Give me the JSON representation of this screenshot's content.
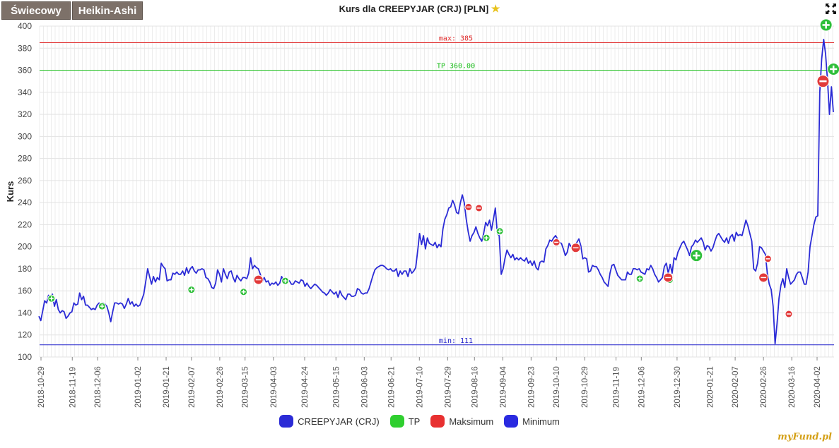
{
  "tabs": [
    {
      "label": "Świecowy"
    },
    {
      "label": "Heikin-Ashi"
    }
  ],
  "title": "Kurs dla CREEPYJAR (CRJ) [PLN]",
  "brand": "myFund.pl",
  "chart_data": {
    "type": "line",
    "ylabel": "Kurs",
    "ylim": [
      100,
      400
    ],
    "yticks": [
      100,
      120,
      140,
      160,
      180,
      200,
      220,
      240,
      260,
      280,
      300,
      320,
      340,
      360,
      380,
      400
    ],
    "grid": true,
    "legend_position": "bottom",
    "xticks": [
      "2018-10-29",
      "2018-11-19",
      "2018-12-06",
      "2019-01-02",
      "2019-01-21",
      "2019-02-07",
      "2019-02-26",
      "2019-03-15",
      "2019-04-03",
      "2019-04-24",
      "2019-05-15",
      "2019-06-03",
      "2019-06-21",
      "2019-07-10",
      "2019-07-29",
      "2019-08-16",
      "2019-09-04",
      "2019-09-23",
      "2019-10-10",
      "2019-10-29",
      "2019-11-19",
      "2019-12-06",
      "2019-12-30",
      "2020-01-21",
      "2020-02-07",
      "2020-02-26",
      "2020-03-16",
      "2020-04-02"
    ],
    "series": [
      {
        "name": "CREEPYJAR (CRJ)",
        "color": "#2b2bd6",
        "values": [
          137,
          133,
          142,
          151,
          149,
          156,
          154,
          157,
          146,
          152,
          143,
          140,
          142,
          141,
          135,
          137,
          140,
          141,
          149,
          147,
          148,
          158,
          152,
          155,
          147,
          147,
          145,
          143,
          144,
          143,
          147,
          149,
          146,
          149,
          148,
          146,
          140,
          132,
          141,
          149,
          149,
          148,
          149,
          148,
          144,
          148,
          153,
          148,
          150,
          146,
          148,
          146,
          147,
          152,
          157,
          168,
          180,
          173,
          166,
          173,
          168,
          172,
          170,
          185,
          182,
          180,
          169,
          170,
          170,
          176,
          175,
          177,
          175,
          175,
          178,
          174,
          181,
          176,
          180,
          182,
          178,
          176,
          179,
          179,
          180,
          179,
          172,
          171,
          168,
          163,
          162,
          167,
          179,
          175,
          168,
          180,
          175,
          171,
          177,
          178,
          172,
          168,
          174,
          171,
          169,
          172,
          172,
          171,
          176,
          190,
          180,
          183,
          181,
          180,
          175,
          168,
          172,
          168,
          169,
          165,
          167,
          166,
          168,
          165,
          167,
          173,
          168,
          168,
          170,
          169,
          166,
          166,
          169,
          168,
          167,
          170,
          169,
          164,
          167,
          164,
          162,
          164,
          166,
          165,
          163,
          161,
          159,
          158,
          156,
          158,
          161,
          159,
          157,
          159,
          154,
          160,
          156,
          154,
          152,
          157,
          157,
          155,
          155,
          156,
          162,
          161,
          158,
          157,
          158,
          158,
          162,
          168,
          174,
          179,
          181,
          182,
          183,
          183,
          182,
          180,
          179,
          180,
          178,
          178,
          180,
          173,
          178,
          175,
          178,
          178,
          173,
          180,
          176,
          178,
          181,
          196,
          212,
          202,
          210,
          198,
          208,
          203,
          202,
          201,
          204,
          199,
          202,
          200,
          216,
          225,
          229,
          235,
          236,
          242,
          238,
          231,
          230,
          240,
          247,
          240,
          225,
          214,
          205,
          210,
          213,
          218,
          212,
          208,
          205,
          212,
          222,
          219,
          224,
          215,
          225,
          235,
          212,
          210,
          175,
          180,
          190,
          197,
          193,
          190,
          193,
          188,
          190,
          188,
          190,
          188,
          187,
          190,
          185,
          187,
          183,
          187,
          181,
          179,
          186,
          187,
          186,
          198,
          201,
          206,
          205,
          208,
          210,
          207,
          204,
          203,
          198,
          192,
          195,
          203,
          200,
          201,
          199,
          204,
          207,
          201,
          189,
          190,
          189,
          177,
          178,
          183,
          182,
          182,
          179,
          175,
          172,
          168,
          166,
          164,
          176,
          183,
          184,
          179,
          174,
          172,
          170,
          170,
          170,
          177,
          175,
          175,
          180,
          180,
          179,
          180,
          177,
          176,
          175,
          180,
          179,
          183,
          180,
          175,
          172,
          168,
          170,
          172,
          182,
          185,
          176,
          184,
          176,
          190,
          188,
          195,
          199,
          203,
          205,
          201,
          197,
          192,
          200,
          202,
          206,
          204,
          206,
          208,
          204,
          197,
          201,
          200,
          196,
          199,
          205,
          210,
          212,
          209,
          206,
          204,
          208,
          203,
          209,
          211,
          205,
          213,
          210,
          211,
          210,
          217,
          224,
          219,
          212,
          205,
          180,
          178,
          185,
          200,
          199,
          196,
          193,
          176,
          166,
          161,
          146,
          112,
          130,
          153,
          165,
          171,
          163,
          180,
          172,
          166,
          168,
          170,
          175,
          177,
          177,
          172,
          166,
          166,
          177,
          200,
          210,
          220,
          227,
          228,
          340,
          370,
          388,
          375,
          350,
          320,
          345,
          322
        ]
      }
    ],
    "tp_markers": [
      {
        "x": "2018-11-05",
        "y": 153
      },
      {
        "x": "2018-12-09",
        "y": 146
      },
      {
        "x": "2019-02-07",
        "y": 161
      },
      {
        "x": "2019-03-14",
        "y": 159
      },
      {
        "x": "2019-04-11",
        "y": 169
      },
      {
        "x": "2019-09-02",
        "y": 214
      },
      {
        "x": "2019-08-24",
        "y": 208
      },
      {
        "x": "2019-12-05",
        "y": 171
      },
      {
        "x": "2019-12-25",
        "y": 170
      },
      {
        "x": "2020-01-12",
        "y": 192
      },
      {
        "x": "2020-04-08",
        "y": 401
      },
      {
        "x": "2020-04-13",
        "y": 361
      }
    ],
    "max_markers": [
      {
        "x": "2019-03-24",
        "y": 170
      },
      {
        "x": "2019-08-12",
        "y": 236
      },
      {
        "x": "2019-08-19",
        "y": 235
      },
      {
        "x": "2019-10-10",
        "y": 204
      },
      {
        "x": "2019-10-23",
        "y": 199
      },
      {
        "x": "2019-12-24",
        "y": 172
      },
      {
        "x": "2020-02-26",
        "y": 172
      },
      {
        "x": "2020-02-29",
        "y": 189
      },
      {
        "x": "2020-03-14",
        "y": 139
      },
      {
        "x": "2020-04-06",
        "y": 350
      }
    ],
    "hlines": [
      {
        "label": "max: 385",
        "value": 385,
        "color": "#e02b2b"
      },
      {
        "label": "TP 360.00",
        "value": 360,
        "color": "#1fbf1f"
      },
      {
        "label": "min: 111",
        "value": 111,
        "color": "#2222cc"
      }
    ],
    "legend": [
      {
        "label": "CREEPYJAR (CRJ)",
        "color": "#2b2bd6"
      },
      {
        "label": "TP",
        "color": "#2fcf2f"
      },
      {
        "label": "Maksimum",
        "color": "#e83030"
      },
      {
        "label": "Minimum",
        "color": "#2a2ae0"
      }
    ]
  }
}
